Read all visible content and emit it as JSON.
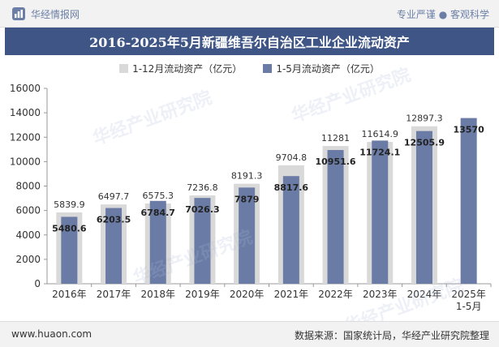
{
  "header": {
    "brand": "华经情报网",
    "tagline": "专业严谨 ● 客观科学"
  },
  "watermark": "华经产业研究院",
  "footer": {
    "url": "www.huaon.com",
    "source": "数据来源：国家统计局，华经产业研究院整理"
  },
  "colors": {
    "title_bg": "#3e5586",
    "series_full_year": "#d9d9d9",
    "series_jan_may": "#6a7ba6"
  },
  "chart_data": {
    "type": "bar",
    "title": "2016-2025年5月新疆维吾尔自治区工业企业流动资产",
    "categories": [
      "2016年",
      "2017年",
      "2018年",
      "2019年",
      "2020年",
      "2021年",
      "2022年",
      "2023年",
      "2024年",
      "2025年\n1-5月"
    ],
    "series": [
      {
        "name": "1-12月流动资产（亿元）",
        "values": [
          5839.9,
          6497.7,
          6575.3,
          7236.8,
          8191.3,
          9704.8,
          11281,
          11614.9,
          12897.3,
          null
        ]
      },
      {
        "name": "1-5月流动资产（亿元）",
        "values": [
          5480.6,
          6203.5,
          6784.7,
          7026.3,
          7879,
          8817.6,
          10951.6,
          11724.1,
          12505.9,
          13570
        ]
      }
    ],
    "ylim": [
      0,
      16000
    ],
    "yticks": [
      0,
      2000,
      4000,
      6000,
      8000,
      10000,
      12000,
      14000,
      16000
    ],
    "legend_position": "top-center",
    "grid": false
  }
}
